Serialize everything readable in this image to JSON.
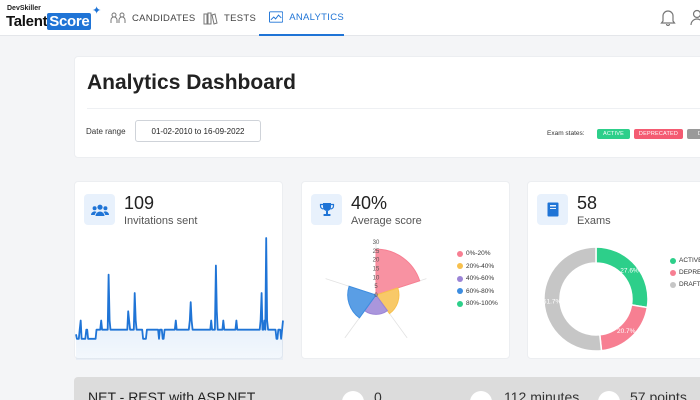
{
  "brand": {
    "small": "DevSkiller",
    "talent": "Talent",
    "score": "Score"
  },
  "nav": {
    "candidates": "CANDIDATES",
    "tests": "TESTS",
    "analytics": "ANALYTICS"
  },
  "header": {
    "title": "Analytics Dashboard",
    "date_range_label": "Date range",
    "date_range_value": "01-02-2010 to 16-09-2022",
    "exam_states_label": "Exam states:",
    "states": {
      "active": "ACTIVE",
      "deprecated": "DEPRECATED",
      "draft": "DR"
    },
    "colors": {
      "active": "#2dcf8a",
      "deprecated": "#f45b72",
      "draft": "#9a9a9a"
    }
  },
  "invitations": {
    "value": "109",
    "label": "Invitations sent"
  },
  "score": {
    "value": "40%",
    "label": "Average score"
  },
  "exams": {
    "value": "58",
    "label": "Exams"
  },
  "chart_data": [
    {
      "type": "area",
      "title": "Invitations sent",
      "color": "#1f74d6",
      "values": [
        1.5,
        1,
        1,
        1,
        2,
        3,
        1,
        1,
        1,
        1,
        1,
        2,
        2,
        1,
        1,
        1,
        1,
        1,
        1,
        1,
        1,
        1,
        2,
        2,
        2,
        2,
        2,
        3,
        2,
        2,
        2,
        2,
        2,
        2,
        2,
        8,
        3,
        2,
        2,
        2,
        2,
        2,
        2,
        2,
        2,
        2,
        2,
        2,
        2,
        2,
        2,
        2,
        2,
        2,
        2,
        2,
        4,
        3,
        2,
        2,
        2,
        2,
        2,
        6,
        3,
        2,
        2,
        2,
        2,
        2,
        2,
        2,
        1,
        1,
        1,
        1,
        2,
        2,
        2,
        2,
        2,
        2,
        2,
        2,
        2,
        2,
        2,
        2,
        2,
        1,
        2,
        2,
        2,
        1,
        1,
        2,
        2,
        2,
        2,
        2,
        2,
        2,
        2,
        2,
        2,
        2,
        2,
        3,
        2,
        2,
        2,
        2,
        2,
        2,
        2,
        2,
        2,
        2,
        2,
        2,
        2,
        2,
        3,
        5,
        3,
        2,
        2,
        2,
        2,
        2,
        2,
        2,
        2,
        2,
        2,
        2,
        2,
        2,
        2,
        2,
        2,
        2,
        2,
        2,
        2,
        3,
        2,
        2,
        2,
        2,
        9,
        4,
        2,
        2,
        2,
        2,
        2,
        2,
        3,
        2,
        2,
        2,
        2,
        2,
        2,
        2,
        2,
        2,
        2,
        2,
        2,
        2,
        3,
        2,
        2,
        2,
        2,
        2,
        2,
        2,
        2,
        2,
        2,
        2,
        2,
        2,
        2,
        2,
        2,
        2,
        2,
        2,
        2,
        2,
        2,
        2,
        2,
        2,
        3,
        6,
        2,
        2,
        3,
        2,
        12,
        3,
        2,
        2,
        2,
        2,
        2,
        2,
        2,
        2,
        2,
        1,
        1,
        2,
        2,
        2,
        1,
        2,
        3
      ]
    },
    {
      "type": "pie",
      "title": "Average score",
      "variant": "polar-area",
      "rmax": 30,
      "ticks": [
        "30",
        "25",
        "20",
        "15",
        "10",
        "5",
        "0"
      ],
      "categories": [
        "0%-20%",
        "20%-40%",
        "40%-60%",
        "60%-80%",
        "80%-100%"
      ],
      "values": [
        26,
        13,
        11,
        16,
        0
      ],
      "colors": [
        "#f77f92",
        "#f7c04d",
        "#9b84d6",
        "#3d8de0",
        "#2dcf8a"
      ]
    },
    {
      "type": "pie",
      "title": "Exams",
      "variant": "doughnut",
      "categories": [
        "ACTIVE",
        "DEPRECATED",
        "DRAFT"
      ],
      "values": [
        27.6,
        20.7,
        51.7
      ],
      "labels": [
        "27.6%",
        "20.7%",
        "51.7%"
      ],
      "colors": [
        "#2dcf8a",
        "#f77f92",
        "#c6c6c6"
      ]
    }
  ],
  "bottom": {
    "title": "NET - REST with ASP.NET",
    "count": "0",
    "duration": "112 minutes",
    "points": "57 points"
  }
}
